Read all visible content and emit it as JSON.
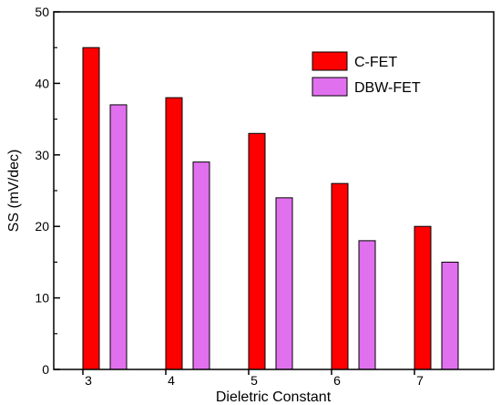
{
  "chart_data": {
    "type": "bar",
    "title": "",
    "xlabel": "Dieletric Constant",
    "ylabel": "SS (mV/dec)",
    "categories": [
      "3",
      "4",
      "5",
      "6",
      "7"
    ],
    "ylim": [
      0,
      50
    ],
    "yticks": [
      "0",
      "10",
      "20",
      "30",
      "40",
      "50"
    ],
    "grid": false,
    "legend_position": "top-right",
    "series": [
      {
        "name": "C-FET",
        "values": [
          45,
          38,
          33,
          26,
          20
        ],
        "color": "#ff0000"
      },
      {
        "name": "DBW-FET",
        "values": [
          37,
          29,
          24,
          18,
          15
        ],
        "color": "#e070ee"
      }
    ]
  }
}
